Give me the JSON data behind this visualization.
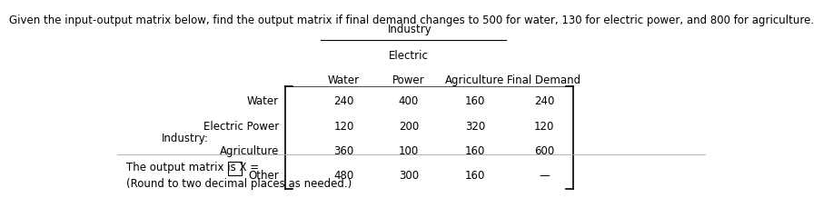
{
  "title": "Given the input-output matrix below, find the output matrix if final demand changes to 500 for water, 130 for electric power, and 800 for agriculture.",
  "header_industry": "Industry",
  "header_electric": "Electric",
  "col_headers": [
    "Water",
    "Power",
    "Agriculture",
    "Final Demand"
  ],
  "row_labels_right": [
    "Water",
    "Electric Power",
    "Agriculture",
    "Other"
  ],
  "table_data": [
    [
      "240",
      "400",
      "160",
      "240"
    ],
    [
      "120",
      "200",
      "320",
      "120"
    ],
    [
      "360",
      "100",
      "160",
      "600"
    ],
    [
      "480",
      "300",
      "160",
      "—"
    ]
  ],
  "bottom_text1": "The output matrix is X =",
  "bottom_text2": "(Round to two decimal places as needed.)",
  "bg_color": "#ffffff",
  "text_color": "#000000",
  "line_color": "#aaaaaa"
}
